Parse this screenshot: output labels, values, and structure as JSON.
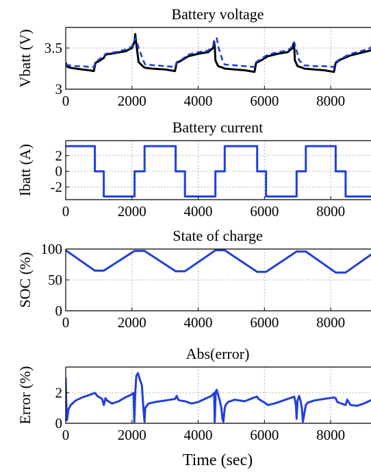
{
  "figure": {
    "xlabel": "Time (sec)"
  },
  "chart_data": [
    {
      "type": "line",
      "title": "Battery voltage",
      "xlabel": "",
      "ylabel": "Vbatt (V)",
      "xlim": [
        0,
        9300
      ],
      "ylim": [
        3.0,
        3.75
      ],
      "xticks": [
        0,
        2000,
        4000,
        6000,
        8000
      ],
      "xtick_labels": [
        "0",
        "2000",
        "4000",
        "6000",
        "8000"
      ],
      "yticks": [
        3.0,
        3.5
      ],
      "ytick_labels": [
        "3",
        "3.5"
      ],
      "grid": true,
      "series": [
        {
          "color": "#000000",
          "dash": "solid",
          "x": [
            0,
            60,
            150,
            300,
            500,
            700,
            850,
            900,
            1000,
            1150,
            1200,
            1500,
            1800,
            2000,
            2080,
            2100,
            2130,
            2200,
            2350,
            2400,
            2600,
            3000,
            3300,
            3350,
            3500,
            3700,
            4000,
            4300,
            4450,
            4480,
            4500,
            4520,
            4600,
            4750,
            4800,
            5100,
            5400,
            5700,
            5750,
            5900,
            6100,
            6400,
            6700,
            6850,
            6880,
            6900,
            6920,
            7000,
            7150,
            7200,
            7500,
            7800,
            8100,
            8150,
            8300,
            8600,
            8900,
            9200,
            9300
          ],
          "y": [
            3.32,
            3.27,
            3.26,
            3.25,
            3.24,
            3.23,
            3.22,
            3.32,
            3.34,
            3.38,
            3.42,
            3.44,
            3.46,
            3.5,
            3.58,
            3.67,
            3.55,
            3.33,
            3.27,
            3.26,
            3.25,
            3.24,
            3.22,
            3.32,
            3.35,
            3.4,
            3.43,
            3.45,
            3.5,
            3.58,
            3.52,
            3.35,
            3.28,
            3.26,
            3.25,
            3.24,
            3.23,
            3.21,
            3.32,
            3.35,
            3.4,
            3.43,
            3.45,
            3.5,
            3.56,
            3.5,
            3.35,
            3.28,
            3.26,
            3.25,
            3.24,
            3.23,
            3.21,
            3.32,
            3.36,
            3.41,
            3.44,
            3.47,
            3.48
          ]
        },
        {
          "color": "#1f3fdc",
          "dash": "dashed",
          "x": [
            0,
            100,
            300,
            500,
            700,
            850,
            900,
            1000,
            1150,
            1200,
            1500,
            1800,
            2000,
            2080,
            2120,
            2200,
            2350,
            2400,
            2700,
            3000,
            3300,
            3350,
            3500,
            3700,
            4000,
            4300,
            4450,
            4500,
            4560,
            4620,
            4750,
            4800,
            5100,
            5400,
            5700,
            5750,
            5900,
            6100,
            6400,
            6700,
            6850,
            6900,
            6950,
            7050,
            7150,
            7200,
            7500,
            7800,
            8100,
            8150,
            8300,
            8600,
            8900,
            9200,
            9300
          ],
          "y": [
            3.3,
            3.29,
            3.28,
            3.28,
            3.27,
            3.27,
            3.33,
            3.36,
            3.4,
            3.43,
            3.45,
            3.48,
            3.52,
            3.6,
            3.62,
            3.5,
            3.34,
            3.3,
            3.29,
            3.28,
            3.27,
            3.33,
            3.36,
            3.42,
            3.45,
            3.47,
            3.52,
            3.58,
            3.62,
            3.5,
            3.33,
            3.3,
            3.29,
            3.28,
            3.27,
            3.33,
            3.37,
            3.42,
            3.45,
            3.47,
            3.52,
            3.57,
            3.5,
            3.35,
            3.31,
            3.29,
            3.28,
            3.28,
            3.27,
            3.33,
            3.37,
            3.43,
            3.46,
            3.5,
            3.56
          ]
        }
      ]
    },
    {
      "type": "line",
      "title": "Battery current",
      "xlabel": "",
      "ylabel": "Ibatt (A)",
      "xlim": [
        0,
        9300
      ],
      "ylim": [
        -3.6,
        3.9
      ],
      "xticks": [
        0,
        2000,
        4000,
        6000,
        8000
      ],
      "xtick_labels": [
        "0",
        "2000",
        "4000",
        "6000",
        "8000"
      ],
      "yticks": [
        -2,
        0,
        2
      ],
      "ytick_labels": [
        "-2",
        "0",
        "2"
      ],
      "grid": true,
      "series": [
        {
          "color": "#1f3fdc",
          "dash": "solid",
          "x": [
            0,
            880,
            880,
            1150,
            1150,
            2080,
            2080,
            2380,
            2380,
            3320,
            3320,
            3600,
            3600,
            4520,
            4520,
            4800,
            4800,
            5780,
            5780,
            6050,
            6050,
            6970,
            6970,
            7250,
            7250,
            8150,
            8150,
            8450,
            8450,
            9300
          ],
          "y": [
            3.2,
            3.2,
            0,
            0,
            -3.2,
            -3.2,
            0,
            0,
            3.2,
            3.2,
            0,
            0,
            -3.2,
            -3.2,
            0,
            0,
            3.2,
            3.2,
            0,
            0,
            -3.2,
            -3.2,
            0,
            0,
            3.2,
            3.2,
            0,
            0,
            -3.2,
            -3.2
          ]
        }
      ]
    },
    {
      "type": "line",
      "title": "State of charge",
      "xlabel": "",
      "ylabel": "SOC (%)",
      "xlim": [
        0,
        9300
      ],
      "ylim": [
        0,
        100
      ],
      "xticks": [
        0,
        2000,
        4000,
        6000,
        8000
      ],
      "xtick_labels": [
        "0",
        "2000",
        "4000",
        "6000",
        "8000"
      ],
      "yticks": [
        0,
        50,
        100
      ],
      "ytick_labels": [
        "0",
        "50",
        "100"
      ],
      "grid": true,
      "series": [
        {
          "color": "#1f3fdc",
          "dash": "solid",
          "x": [
            0,
            880,
            1150,
            2080,
            2380,
            3320,
            3600,
            4520,
            4800,
            5780,
            6050,
            6970,
            7250,
            8150,
            8450,
            9300
          ],
          "y": [
            98,
            65,
            65,
            97,
            97,
            64,
            64,
            98,
            98,
            63,
            63,
            96,
            96,
            62,
            62,
            94
          ]
        }
      ]
    },
    {
      "type": "line",
      "title": "Abs(error)",
      "xlabel": "Time (sec)",
      "ylabel": "Error (%)",
      "xlim": [
        0,
        9300
      ],
      "ylim": [
        0,
        3.7
      ],
      "xticks": [
        0,
        2000,
        4000,
        6000,
        8000
      ],
      "xtick_labels": [
        "0",
        "2000",
        "4000",
        "6000",
        "8000"
      ],
      "yticks": [
        0,
        2
      ],
      "ytick_labels": [
        "0",
        "2"
      ],
      "grid": true,
      "series": [
        {
          "color": "#1f3fdc",
          "dash": "solid",
          "x": [
            0,
            15,
            40,
            80,
            150,
            300,
            500,
            700,
            880,
            950,
            1100,
            1150,
            1200,
            1250,
            1400,
            1600,
            1800,
            2000,
            2050,
            2070,
            2100,
            2130,
            2180,
            2250,
            2300,
            2330,
            2360,
            2380,
            2400,
            2500,
            2700,
            3000,
            3300,
            3350,
            3400,
            3450,
            3600,
            3800,
            4000,
            4200,
            4400,
            4480,
            4500,
            4530,
            4560,
            4600,
            4650,
            4700,
            4730,
            4760,
            4800,
            4830,
            4900,
            5100,
            5400,
            5700,
            5780,
            5820,
            6050,
            6100,
            6300,
            6500,
            6700,
            6900,
            6950,
            6970,
            7000,
            7050,
            7100,
            7130,
            7160,
            7200,
            7250,
            7300,
            7500,
            7800,
            8100,
            8150,
            8200,
            8450,
            8500,
            8600,
            8800,
            9000,
            9200,
            9300
          ],
          "y": [
            3.0,
            1.5,
            0.2,
            0.9,
            1.2,
            1.5,
            1.7,
            1.85,
            2.0,
            1.8,
            1.6,
            1.2,
            1.65,
            1.5,
            1.3,
            1.45,
            1.7,
            1.9,
            2.0,
            0.1,
            2.0,
            3.1,
            3.3,
            2.8,
            2.5,
            1.5,
            0.6,
            0.1,
            1.0,
            1.3,
            1.4,
            1.5,
            1.6,
            1.8,
            1.55,
            1.5,
            1.45,
            1.3,
            1.4,
            1.6,
            1.8,
            2.0,
            0.1,
            2.1,
            2.2,
            1.9,
            1.5,
            1.0,
            0.3,
            0.1,
            1.0,
            1.2,
            1.4,
            1.55,
            1.45,
            1.7,
            1.75,
            1.6,
            1.3,
            1.2,
            1.3,
            1.45,
            1.6,
            1.75,
            1.2,
            0.3,
            1.5,
            1.8,
            1.4,
            1.0,
            0.1,
            0.6,
            1.2,
            1.35,
            1.5,
            1.6,
            1.7,
            1.65,
            1.4,
            1.2,
            1.55,
            1.2,
            1.15,
            1.3,
            1.5,
            1.6
          ]
        }
      ]
    }
  ]
}
